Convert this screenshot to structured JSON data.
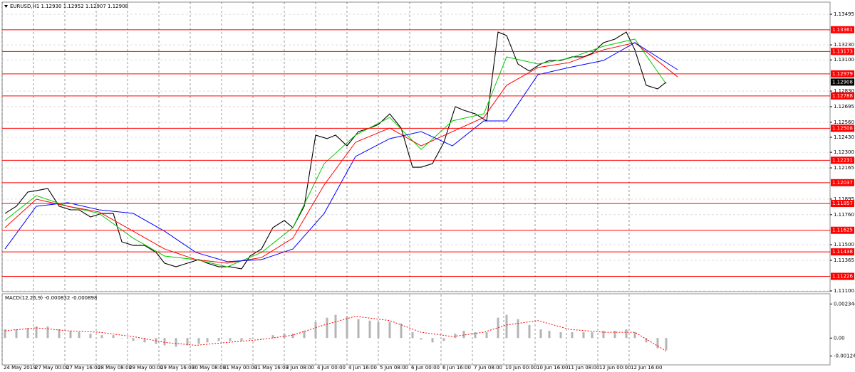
{
  "chart_data": [
    {
      "type": "line",
      "title": "EURUSD,H1  1.12930 1.12952 1.12907 1.12908",
      "xlim": [
        0,
        290.5
      ],
      "xticks": [
        {
          "value": 0,
          "label": "24 May 2019"
        },
        {
          "value": 11,
          "label": "27 May 00:00"
        },
        {
          "value": 22,
          "label": "27 May 16:00"
        },
        {
          "value": 33,
          "label": "28 May 08:00"
        },
        {
          "value": 44,
          "label": "29 May 00:00"
        },
        {
          "value": 55,
          "label": "29 May 16:00"
        },
        {
          "value": 66,
          "label": "30 May 08:00"
        },
        {
          "value": 77,
          "label": "31 May 00:00"
        },
        {
          "value": 88,
          "label": "31 May 16:00"
        },
        {
          "value": 99,
          "label": "3 Jun 08:00"
        },
        {
          "value": 110,
          "label": "4 Jun 00:00"
        },
        {
          "value": 121,
          "label": "4 Jun 16:00"
        },
        {
          "value": 132,
          "label": "5 Jun 08:00"
        },
        {
          "value": 143,
          "label": "6 Jun 00:00"
        },
        {
          "value": 154,
          "label": "6 Jun 16:00"
        },
        {
          "value": 165,
          "label": "7 Jun 08:00"
        },
        {
          "value": 176,
          "label": "10 Jun 00:00"
        },
        {
          "value": 187,
          "label": "10 Jun 16:00"
        },
        {
          "value": 198,
          "label": "11 Jun 08:00"
        },
        {
          "value": 209,
          "label": "12 Jun 00:00"
        },
        {
          "value": 220,
          "label": "12 Jun 16:00"
        }
      ],
      "ylim": [
        1.111,
        1.136
      ],
      "yticks": [
        1.13495,
        {
          "value": 1.1323,
          "label": "1.13230"
        },
        {
          "value": 1.131,
          "label": "1.13100"
        },
        {
          "value": 1.1283,
          "label": "1.12830"
        },
        1.12695,
        {
          "value": 1.1256,
          "label": "1.12560"
        },
        {
          "value": 1.1243,
          "label": "1.12430"
        },
        {
          "value": 1.123,
          "label": "1.12300"
        },
        1.12165,
        1.11895,
        {
          "value": 1.1176,
          "label": "1.11760"
        },
        {
          "value": 1.115,
          "label": "1.11500"
        },
        1.11365,
        {
          "value": 1.111,
          "label": "1.11100"
        }
      ],
      "grid": true,
      "series": [
        {
          "color": "#000000",
          "x": [
            1,
            5,
            9,
            12,
            16,
            20,
            24,
            27,
            31,
            35,
            39,
            42,
            46,
            50,
            54,
            57,
            61,
            65,
            69,
            72,
            76,
            80,
            84,
            87,
            91,
            95,
            99,
            102,
            106,
            110,
            114,
            117,
            121,
            125,
            129,
            132,
            136,
            140,
            144,
            147,
            151,
            155,
            159,
            162,
            166,
            170,
            174,
            177,
            181,
            185,
            189,
            192,
            196,
            200,
            204,
            207,
            211,
            215,
            219,
            222,
            226,
            230,
            233
          ],
          "values": [
            1.11771,
            1.11833,
            1.11956,
            1.11968,
            1.11987,
            1.11833,
            1.11802,
            1.11802,
            1.1174,
            1.11771,
            1.11771,
            1.11525,
            1.11494,
            1.11494,
            1.11433,
            1.1134,
            1.11309,
            1.1134,
            1.11371,
            1.1134,
            1.11309,
            1.11309,
            1.11291,
            1.11402,
            1.11463,
            1.11648,
            1.1171,
            1.11648,
            1.11833,
            1.12449,
            1.12418,
            1.12449,
            1.12356,
            1.12479,
            1.1251,
            1.12541,
            1.12633,
            1.1251,
            1.12171,
            1.12171,
            1.12202,
            1.12387,
            1.12695,
            1.12664,
            1.12633,
            1.12572,
            1.13341,
            1.13311,
            1.13064,
            1.13003,
            1.13064,
            1.13095,
            1.13095,
            1.13126,
            1.13126,
            1.13157,
            1.13249,
            1.1328,
            1.13341,
            1.13187,
            1.1288,
            1.12849,
            1.12908
          ]
        },
        {
          "color": "#00cc00",
          "x": [
            1,
            12,
            23,
            34,
            46,
            57,
            68,
            79,
            91,
            102,
            113,
            124,
            136,
            147,
            158,
            169,
            177,
            188,
            199,
            211,
            222,
            233
          ],
          "values": [
            1.1171,
            1.11925,
            1.11833,
            1.11771,
            1.11556,
            1.11402,
            1.11371,
            1.11309,
            1.11433,
            1.11648,
            1.12202,
            1.12449,
            1.12602,
            1.12325,
            1.12572,
            1.12633,
            1.13126,
            1.13064,
            1.13114,
            1.13218,
            1.1328,
            1.12892
          ]
        },
        {
          "color": "#ff0000",
          "x": [
            1,
            12,
            23,
            34,
            46,
            57,
            68,
            79,
            91,
            102,
            113,
            124,
            136,
            147,
            158,
            169,
            177,
            188,
            199,
            211,
            222,
            237
          ],
          "values": [
            1.11648,
            1.11894,
            1.11833,
            1.11784,
            1.11617,
            1.11463,
            1.11371,
            1.1134,
            1.11389,
            1.11556,
            1.12018,
            1.12387,
            1.1251,
            1.12356,
            1.12479,
            1.12602,
            1.1288,
            1.13034,
            1.13077,
            1.13187,
            1.13249,
            1.12953
          ]
        },
        {
          "color": "#0000ff",
          "x": [
            1,
            12,
            23,
            34,
            46,
            57,
            68,
            79,
            91,
            102,
            113,
            124,
            136,
            147,
            158,
            169,
            177,
            188,
            199,
            211,
            222,
            237
          ],
          "values": [
            1.11463,
            1.11833,
            1.11864,
            1.11802,
            1.11771,
            1.11617,
            1.11433,
            1.11353,
            1.11371,
            1.11463,
            1.11771,
            1.12264,
            1.12418,
            1.12479,
            1.12356,
            1.12572,
            1.12572,
            1.12972,
            1.13034,
            1.13095,
            1.13249,
            1.13015
          ]
        }
      ],
      "levels": {
        "color": "#ff0000",
        "values": [
          1.13361,
          1.13173,
          1.12979,
          1.12788,
          1.12508,
          1.12231,
          1.12037,
          1.11857,
          1.11625,
          1.11438,
          1.11226
        ]
      },
      "current_price": 1.12908
    },
    {
      "type": "bar",
      "title": "MACD(12,26,9) -0.000832 -0.000898",
      "ylim": [
        -0.0018,
        0.003
      ],
      "yticks": [
        0.002344,
        {
          "value": 0,
          "label": "0.00"
        },
        -0.00124
      ],
      "series": [
        {
          "style": "bar",
          "color": "#b4b4b4",
          "x": [
            1,
            5,
            9,
            12,
            16,
            20,
            24,
            27,
            31,
            35,
            39,
            42,
            46,
            50,
            54,
            57,
            61,
            65,
            69,
            72,
            76,
            80,
            84,
            87,
            91,
            95,
            99,
            102,
            106,
            110,
            114,
            117,
            121,
            125,
            129,
            132,
            136,
            140,
            144,
            147,
            151,
            155,
            159,
            162,
            166,
            170,
            174,
            177,
            181,
            185,
            189,
            192,
            196,
            200,
            204,
            207,
            211,
            215,
            219,
            222,
            226,
            230,
            233
          ],
          "values": [
            0.0006,
            0.0006,
            0.0007,
            0.0008,
            0.0008,
            0.0006,
            0.0005,
            0.0004,
            0.0003,
            0.0002,
            0.0002,
            0,
            -0.0002,
            -0.0003,
            -0.0004,
            -0.0005,
            -0.0006,
            -0.0005,
            -0.0004,
            -0.0003,
            -0.0002,
            -0.0002,
            -0.0002,
            -0.0001,
            0,
            0.0002,
            0.0003,
            0.0003,
            0.0005,
            0.0011,
            0.0014,
            0.0016,
            0.0015,
            0.0013,
            0.0012,
            0.0011,
            0.0011,
            0.001,
            0.0004,
            -0.0001,
            -0.0003,
            -0.0002,
            0.0003,
            0.0005,
            0.0004,
            0.0004,
            0.0014,
            0.0016,
            0.0013,
            0.0009,
            0.0006,
            0.0005,
            0.0004,
            0.0004,
            0.0004,
            0.0004,
            0.0005,
            0.0005,
            0.0006,
            0.0004,
            -0.0003,
            -0.0007,
            -0.000832
          ]
        },
        {
          "style": "dashed",
          "color": "#ff0000",
          "x": [
            1,
            12,
            23,
            34,
            46,
            57,
            68,
            79,
            91,
            102,
            113,
            124,
            136,
            147,
            158,
            169,
            177,
            188,
            199,
            211,
            222,
            233
          ],
          "values": [
            0.0005,
            0.0007,
            0.0005,
            0.0004,
            0.0001,
            -0.0003,
            -0.0005,
            -0.0003,
            -0.0001,
            0.0002,
            0.0009,
            0.0015,
            0.0012,
            0.0004,
            0.0001,
            0.0004,
            0.0009,
            0.0012,
            0.0006,
            0.0004,
            0.0004,
            -0.000898
          ]
        }
      ]
    }
  ]
}
